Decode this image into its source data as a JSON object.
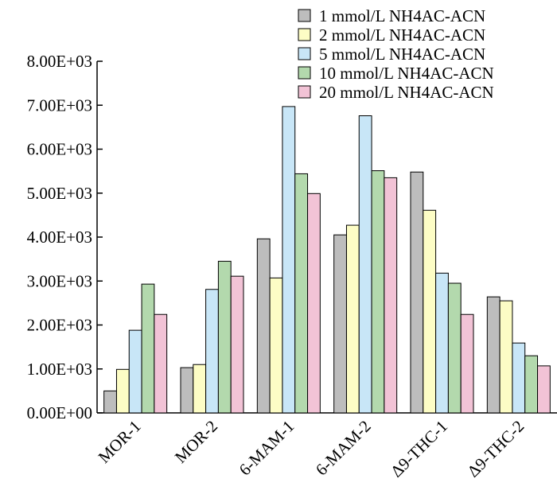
{
  "chart_data": {
    "type": "bar",
    "title": "",
    "xlabel": "",
    "ylabel": "",
    "ylim": [
      0,
      8000
    ],
    "y_ticks": [
      0,
      1000,
      2000,
      3000,
      4000,
      5000,
      6000,
      7000,
      8000
    ],
    "y_tick_labels": [
      "0.00E+00",
      "1.00E+03",
      "2.00E+03",
      "3.00E+03",
      "4.00E+03",
      "5.00E+03",
      "6.00E+03",
      "7.00E+03",
      "8.00E+03"
    ],
    "categories": [
      "MOR-1",
      "MOR-2",
      "6-MAM-1",
      "6-MAM-2",
      "Δ9-THC-1",
      "Δ9-THC-2"
    ],
    "grid": false,
    "legend_position": "top-right",
    "series": [
      {
        "name": "1 mmol/L NH4AC-ACN",
        "color": "#bdbdbd",
        "values": [
          500,
          1030,
          3960,
          4050,
          5480,
          2640
        ]
      },
      {
        "name": "2 mmol/L NH4AC-ACN",
        "color": "#fdfdc5",
        "values": [
          990,
          1100,
          3070,
          4270,
          4610,
          2550
        ]
      },
      {
        "name": "5 mmol/L NH4AC-ACN",
        "color": "#c8e6f7",
        "values": [
          1880,
          2810,
          6970,
          6760,
          3180,
          1590
        ]
      },
      {
        "name": "10 mmol/L NH4AC-ACN",
        "color": "#b3d9ad",
        "values": [
          2930,
          3450,
          5440,
          5510,
          2950,
          1300
        ]
      },
      {
        "name": "20 mmol/L NH4AC-ACN",
        "color": "#f2c3d6",
        "values": [
          2240,
          3110,
          4990,
          5350,
          2240,
          1070
        ]
      }
    ]
  }
}
